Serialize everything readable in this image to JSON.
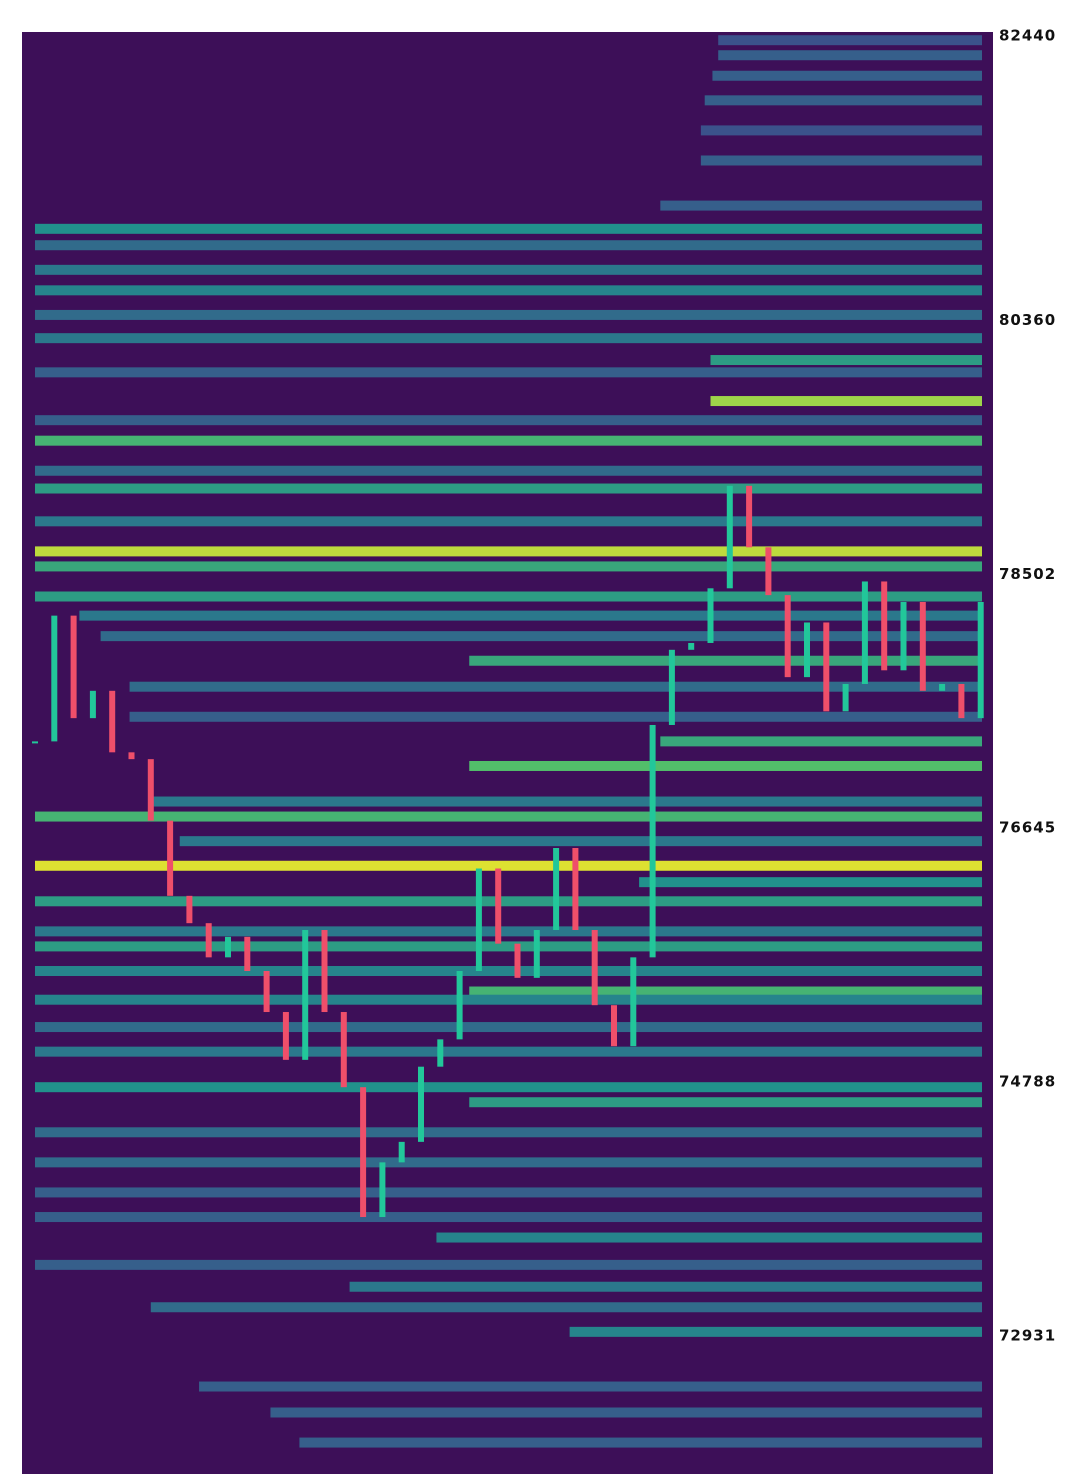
{
  "chart_data": {
    "type": "heatmap",
    "ylim": [
      71920,
      82470
    ],
    "yticks": [
      82440,
      80360,
      78502,
      76645,
      74788,
      72931
    ],
    "background": "#3d0f58",
    "up_color": "#22c79a",
    "down_color": "#ef4f6a",
    "levels": {
      "price": [
        82410,
        82300,
        82150,
        81970,
        81750,
        81530,
        81200,
        81030,
        80910,
        80730,
        80580,
        80400,
        80230,
        80070,
        79980,
        79770,
        79630,
        79480,
        79260,
        79130,
        78890,
        78670,
        78560,
        78340,
        78200,
        78050,
        77870,
        77680,
        77460,
        77280,
        77100,
        76840,
        76730,
        76550,
        76370,
        76250,
        76110,
        75890,
        75780,
        75600,
        75450,
        75390,
        75190,
        75010,
        74750,
        74640,
        74420,
        74200,
        73980,
        73800,
        73650,
        73450,
        73290,
        73140,
        72960,
        72560,
        72370,
        72150
      ],
      "start": [
        35.4,
        35.4,
        35.1,
        34.7,
        34.5,
        34.5,
        32.4,
        0,
        0,
        0,
        0,
        0,
        0,
        35,
        0,
        35,
        0,
        0,
        0,
        0,
        0,
        0,
        0,
        0,
        2.3,
        3.4,
        22.5,
        4.9,
        4.9,
        32.4,
        22.5,
        6,
        0,
        7.5,
        0,
        31.3,
        0,
        0,
        0,
        0,
        22.5,
        0,
        0,
        0,
        0,
        22.5,
        0,
        0,
        0,
        0,
        20.8,
        0,
        16.3,
        6,
        27.7,
        8.5,
        12.2,
        13.7
      ],
      "intensity": [
        0.25,
        0.3,
        0.3,
        0.3,
        0.25,
        0.3,
        0.3,
        0.5,
        0.35,
        0.4,
        0.45,
        0.35,
        0.4,
        0.55,
        0.3,
        0.85,
        0.3,
        0.65,
        0.35,
        0.55,
        0.4,
        0.9,
        0.6,
        0.55,
        0.4,
        0.35,
        0.6,
        0.35,
        0.3,
        0.6,
        0.7,
        0.4,
        0.65,
        0.4,
        0.95,
        0.5,
        0.55,
        0.4,
        0.55,
        0.45,
        0.65,
        0.45,
        0.35,
        0.4,
        0.5,
        0.55,
        0.35,
        0.35,
        0.3,
        0.3,
        0.45,
        0.3,
        0.4,
        0.35,
        0.45,
        0.3,
        0.3,
        0.3
      ]
    },
    "close": [
      77280,
      78200,
      77450,
      77650,
      77200,
      77150,
      76700,
      76150,
      75950,
      75700,
      75850,
      75600,
      75300,
      74950,
      75900,
      75300,
      74750,
      73800,
      74200,
      74350,
      74900,
      75100,
      75600,
      76350,
      75800,
      75550,
      75900,
      76500,
      75900,
      75350,
      75050,
      75700,
      77400,
      77950,
      78000,
      78400,
      79150,
      78700,
      78350,
      77750,
      78150,
      77500,
      77700,
      78450,
      77800,
      78300,
      77650,
      77700,
      77450,
      78300
    ]
  }
}
